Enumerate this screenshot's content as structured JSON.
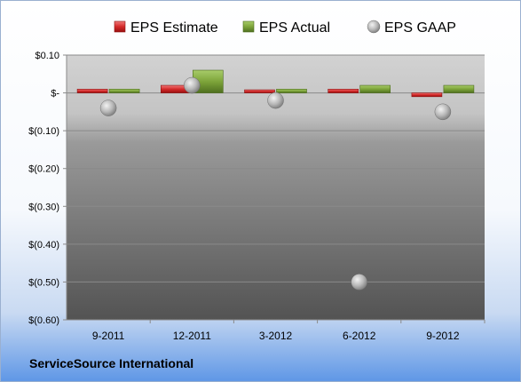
{
  "company_name": "ServiceSource International",
  "chart_data": {
    "type": "bar",
    "categories": [
      "9-2011",
      "12-2011",
      "3-2012",
      "6-2012",
      "9-2012"
    ],
    "series": [
      {
        "name": "EPS Estimate",
        "kind": "bar",
        "color": "#d42a2a",
        "values": [
          0.01,
          0.02,
          0.0,
          0.01,
          -0.01
        ]
      },
      {
        "name": "EPS Actual",
        "kind": "bar",
        "color": "#7da43a",
        "values": [
          0.01,
          0.06,
          0.01,
          0.02,
          0.02
        ]
      },
      {
        "name": "EPS GAAP",
        "kind": "scatter",
        "color": "#b9b9b9",
        "values": [
          -0.04,
          0.02,
          -0.02,
          -0.5,
          -0.05
        ]
      }
    ],
    "yticks": [
      {
        "value": 0.1,
        "label": "$0.10"
      },
      {
        "value": 0.0,
        "label": "$-"
      },
      {
        "value": -0.1,
        "label": "$(0.10)"
      },
      {
        "value": -0.2,
        "label": "$(0.20)"
      },
      {
        "value": -0.3,
        "label": "$(0.30)"
      },
      {
        "value": -0.4,
        "label": "$(0.40)"
      },
      {
        "value": -0.5,
        "label": "$(0.50)"
      },
      {
        "value": -0.6,
        "label": "$(0.60)"
      }
    ],
    "ylim": [
      -0.6,
      0.1
    ],
    "grid": true,
    "legend_position": "top"
  }
}
